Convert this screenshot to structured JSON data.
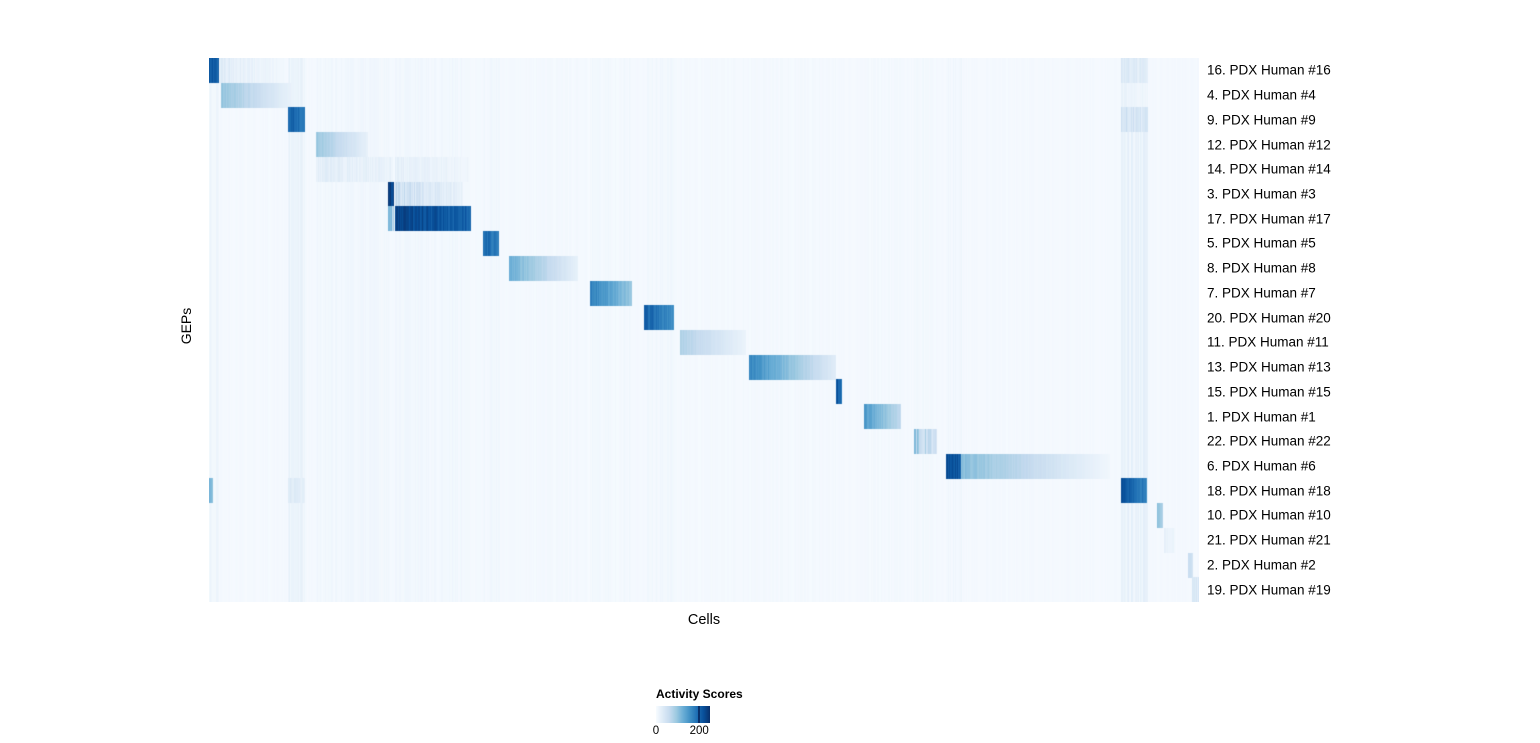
{
  "figure": {
    "xlabel": "Cells",
    "ylabel": "GEPs"
  },
  "legend": {
    "title": "Activity Scores",
    "tick_labels": [
      "0",
      "200"
    ],
    "tick_values": [
      0,
      200
    ]
  },
  "chart_data": {
    "type": "heatmap",
    "title": "",
    "xlabel": "Cells",
    "ylabel": "GEPs",
    "value_range": [
      0,
      250
    ],
    "legend_title": "Activity Scores",
    "legend_ticks": [
      0,
      200
    ],
    "colormap": [
      {
        "t": 0.0,
        "c": "#f7fbff"
      },
      {
        "t": 0.125,
        "c": "#deebf7"
      },
      {
        "t": 0.25,
        "c": "#c6dbef"
      },
      {
        "t": 0.375,
        "c": "#9ecae1"
      },
      {
        "t": 0.5,
        "c": "#6baed6"
      },
      {
        "t": 0.625,
        "c": "#4292c6"
      },
      {
        "t": 0.75,
        "c": "#2171b5"
      },
      {
        "t": 0.875,
        "c": "#08519c"
      },
      {
        "t": 1.0,
        "c": "#08306b"
      }
    ],
    "noise_columns": [
      {
        "x": 0.0,
        "w": 0.01,
        "v": 16
      },
      {
        "x": 0.08,
        "w": 0.016,
        "v": 30
      },
      {
        "x": 0.109,
        "w": 0.076,
        "v": 13
      },
      {
        "x": 0.188,
        "w": 0.076,
        "v": 13
      },
      {
        "x": 0.277,
        "w": 0.016,
        "v": 12
      },
      {
        "x": 0.304,
        "w": 0.068,
        "v": 8
      },
      {
        "x": 0.385,
        "w": 0.043,
        "v": 10
      },
      {
        "x": 0.44,
        "w": 0.029,
        "v": 12
      },
      {
        "x": 0.476,
        "w": 0.066,
        "v": 7
      },
      {
        "x": 0.546,
        "w": 0.087,
        "v": 8
      },
      {
        "x": 0.662,
        "w": 0.036,
        "v": 8
      },
      {
        "x": 0.713,
        "w": 0.022,
        "v": 10
      },
      {
        "x": 0.745,
        "w": 0.015,
        "v": 14
      },
      {
        "x": 0.922,
        "w": 0.026,
        "v": 32
      }
    ],
    "rows": [
      {
        "label": "16. PDX Human #16",
        "blocks": [
          {
            "x0": 0.0,
            "x1": 0.01,
            "v0": 230,
            "v1": 210
          },
          {
            "x0": 0.012,
            "x1": 0.077,
            "v0": 38,
            "v1": 8,
            "striped": true
          },
          {
            "x0": 0.922,
            "x1": 0.948,
            "v0": 45,
            "v1": 35,
            "striped": true
          }
        ]
      },
      {
        "label": "4. PDX Human #4",
        "blocks": [
          {
            "x0": 0.013,
            "x1": 0.082,
            "v0": 105,
            "v1": 20
          },
          {
            "x0": 0.922,
            "x1": 0.948,
            "v0": 20,
            "v1": 15,
            "striped": true
          }
        ]
      },
      {
        "label": "9. PDX Human #9",
        "blocks": [
          {
            "x0": 0.08,
            "x1": 0.096,
            "v0": 215,
            "v1": 195
          },
          {
            "x0": 0.922,
            "x1": 0.948,
            "v0": 65,
            "v1": 45,
            "striped": true
          }
        ]
      },
      {
        "label": "12. PDX Human #12",
        "blocks": [
          {
            "x0": 0.109,
            "x1": 0.16,
            "v0": 100,
            "v1": 22
          }
        ]
      },
      {
        "label": "14. PDX Human #14",
        "blocks": [
          {
            "x0": 0.109,
            "x1": 0.185,
            "v0": 34,
            "v1": 22,
            "striped": true
          },
          {
            "x0": 0.188,
            "x1": 0.262,
            "v0": 28,
            "v1": 16,
            "striped": true
          }
        ]
      },
      {
        "label": "3. PDX Human #3",
        "blocks": [
          {
            "x0": 0.181,
            "x1": 0.186,
            "v0": 250,
            "v1": 250
          },
          {
            "x0": 0.188,
            "x1": 0.256,
            "v0": 75,
            "v1": 22,
            "striped": true
          }
        ]
      },
      {
        "label": "17. PDX Human #17",
        "blocks": [
          {
            "x0": 0.181,
            "x1": 0.186,
            "v0": 120,
            "v1": 120,
            "striped": true
          },
          {
            "x0": 0.188,
            "x1": 0.264,
            "v0": 245,
            "v1": 215
          }
        ]
      },
      {
        "label": "5. PDX Human #5",
        "blocks": [
          {
            "x0": 0.277,
            "x1": 0.292,
            "v0": 210,
            "v1": 185
          }
        ]
      },
      {
        "label": "8. PDX Human #8",
        "blocks": [
          {
            "x0": 0.304,
            "x1": 0.372,
            "v0": 130,
            "v1": 22
          }
        ]
      },
      {
        "label": "7. PDX Human #7",
        "blocks": [
          {
            "x0": 0.385,
            "x1": 0.427,
            "v0": 185,
            "v1": 100
          }
        ]
      },
      {
        "label": "20. PDX Human #20",
        "blocks": [
          {
            "x0": 0.44,
            "x1": 0.469,
            "v0": 215,
            "v1": 170
          }
        ]
      },
      {
        "label": "11. PDX Human #11",
        "blocks": [
          {
            "x0": 0.476,
            "x1": 0.542,
            "v0": 85,
            "v1": 16
          }
        ]
      },
      {
        "label": "13. PDX Human #13",
        "blocks": [
          {
            "x0": 0.546,
            "x1": 0.633,
            "v0": 175,
            "v1": 30
          }
        ]
      },
      {
        "label": "15. PDX Human #15",
        "blocks": [
          {
            "x0": 0.634,
            "x1": 0.639,
            "v0": 225,
            "v1": 200
          }
        ]
      },
      {
        "label": "1. PDX Human #1",
        "blocks": [
          {
            "x0": 0.662,
            "x1": 0.698,
            "v0": 155,
            "v1": 70
          }
        ]
      },
      {
        "label": "22. PDX Human #22",
        "blocks": [
          {
            "x0": 0.713,
            "x1": 0.735,
            "v0": 115,
            "v1": 55,
            "striped": true
          }
        ]
      },
      {
        "label": "6. PDX Human #6",
        "blocks": [
          {
            "x0": 0.745,
            "x1": 0.76,
            "v0": 240,
            "v1": 220
          },
          {
            "x0": 0.76,
            "x1": 0.91,
            "v0": 115,
            "v1": 8
          }
        ]
      },
      {
        "label": "18. PDX Human #18",
        "blocks": [
          {
            "x0": 0.0,
            "x1": 0.004,
            "v0": 130,
            "v1": 110
          },
          {
            "x0": 0.08,
            "x1": 0.096,
            "v0": 40,
            "v1": 30,
            "striped": true
          },
          {
            "x0": 0.922,
            "x1": 0.947,
            "v0": 230,
            "v1": 180
          }
        ]
      },
      {
        "label": "10. PDX Human #10",
        "blocks": [
          {
            "x0": 0.958,
            "x1": 0.963,
            "v0": 110,
            "v1": 80
          }
        ]
      },
      {
        "label": "21. PDX Human #21",
        "blocks": [
          {
            "x0": 0.965,
            "x1": 0.975,
            "v0": 25,
            "v1": 15,
            "striped": true
          }
        ]
      },
      {
        "label": "2. PDX Human #2",
        "blocks": [
          {
            "x0": 0.989,
            "x1": 0.993,
            "v0": 65,
            "v1": 50
          }
        ]
      },
      {
        "label": "19. PDX Human #19",
        "blocks": [
          {
            "x0": 0.993,
            "x1": 1.0,
            "v0": 50,
            "v1": 40,
            "striped": true
          }
        ]
      }
    ]
  }
}
